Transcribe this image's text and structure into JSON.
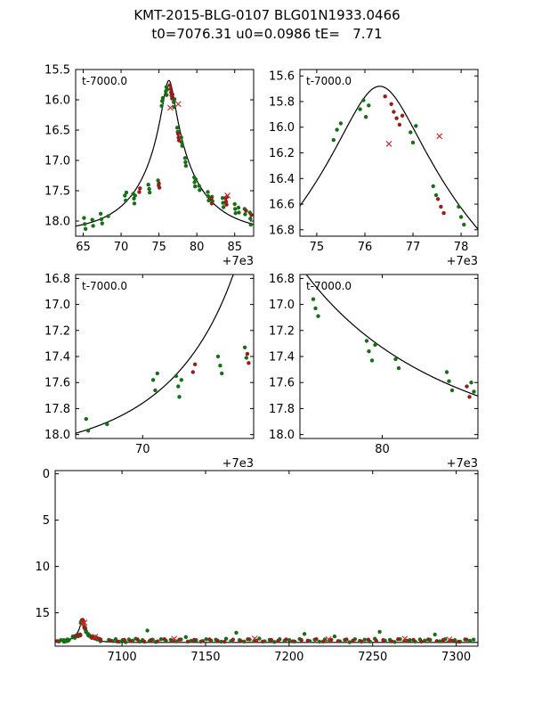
{
  "title": "KMT-2015-BLG-0107 BLG01N1933.0466",
  "subtitle": "t0=7076.31 u0=0.0986 tE=   7.71",
  "chart_data": {
    "type": "scatter",
    "description": "Gravitational microlensing light curve (magnitude vs HJD-2450000) with Paczynski model curve; five panels: wide peak view, peak zoom, rising wing, falling wing, full season",
    "model": {
      "t0": 7076.31,
      "u0": 0.0986,
      "tE": 7.71,
      "baseline_mag": 18.2
    },
    "colors": {
      "curve": "#000000",
      "green_dots": "#157015",
      "red_dots": "#9b1b1b",
      "outlier_x": "#d12626"
    },
    "panels": [
      {
        "id": "peak-wide",
        "x_offset": 7000,
        "xlim": [
          64,
          87.5
        ],
        "ylim": [
          15.5,
          18.25
        ],
        "xticks": [
          65,
          70,
          75,
          80,
          85
        ],
        "xtick_labels": [
          "65",
          "70",
          "75",
          "80",
          "85"
        ],
        "yticks": [
          15.5,
          16.0,
          16.5,
          17.0,
          17.5,
          18.0
        ],
        "ytick_labels": [
          "15.5",
          "16.0",
          "16.5",
          "17.0",
          "17.5",
          "18.0"
        ],
        "annotation": "t-7000.0",
        "offset_label": "+7e3"
      },
      {
        "id": "peak-zoom",
        "x_offset": 7000,
        "xlim": [
          74.65,
          78.35
        ],
        "ylim": [
          15.55,
          16.85
        ],
        "xticks": [
          75,
          76,
          77,
          78
        ],
        "xtick_labels": [
          "75",
          "76",
          "77",
          "78"
        ],
        "yticks": [
          15.6,
          15.8,
          16.0,
          16.2,
          16.4,
          16.6,
          16.8
        ],
        "ytick_labels": [
          "15.6",
          "15.8",
          "16.0",
          "16.2",
          "16.4",
          "16.6",
          "16.8"
        ],
        "annotation": "t-7000.0",
        "offset_label": "+7e3"
      },
      {
        "id": "rise",
        "x_offset": 7000,
        "xlim": [
          66.8,
          75.3
        ],
        "ylim": [
          16.77,
          18.03
        ],
        "xticks": [
          70
        ],
        "xtick_labels": [
          "70"
        ],
        "yticks": [
          16.8,
          17.0,
          17.2,
          17.4,
          17.6,
          17.8,
          18.0
        ],
        "ytick_labels": [
          "16.8",
          "17.0",
          "17.2",
          "17.4",
          "17.6",
          "17.8",
          "18.0"
        ],
        "annotation": "t-7000.0",
        "offset_label": "+7e3"
      },
      {
        "id": "fall",
        "x_offset": 7000,
        "xlim": [
          78.15,
          82.15
        ],
        "ylim": [
          16.77,
          18.03
        ],
        "xticks": [
          80
        ],
        "xtick_labels": [
          "80"
        ],
        "yticks": [
          16.8,
          17.0,
          17.2,
          17.4,
          17.6,
          17.8,
          18.0
        ],
        "ytick_labels": [
          "16.8",
          "17.0",
          "17.2",
          "17.4",
          "17.6",
          "17.8",
          "18.0"
        ],
        "annotation": "t-7000.0",
        "offset_label": "+7e3"
      },
      {
        "id": "full",
        "x_offset": 0,
        "xlim": [
          7060,
          7313
        ],
        "ylim": [
          -0.35,
          18.6
        ],
        "xticks": [
          7100,
          7150,
          7200,
          7250,
          7300
        ],
        "xtick_labels": [
          "7100",
          "7150",
          "7200",
          "7250",
          "7300"
        ],
        "yticks": [
          0,
          5,
          10,
          15
        ],
        "ytick_labels": [
          "0",
          "5",
          "10",
          "15"
        ],
        "annotation": "",
        "offset_label": ""
      }
    ],
    "series": [
      {
        "name": "obs-green",
        "marker": "dot",
        "color_key": "green_dots",
        "points": [
          [
            7065.1,
            17.95
          ],
          [
            7065.2,
            18.05
          ],
          [
            7065.3,
            18.13
          ],
          [
            7066.2,
            17.98
          ],
          [
            7066.3,
            18.08
          ],
          [
            7067.3,
            17.88
          ],
          [
            7067.4,
            17.97
          ],
          [
            7067.5,
            18.04
          ],
          [
            7068.3,
            17.92
          ],
          [
            7070.5,
            17.58
          ],
          [
            7070.6,
            17.66
          ],
          [
            7070.7,
            17.53
          ],
          [
            7071.6,
            17.55
          ],
          [
            7071.7,
            17.63
          ],
          [
            7071.75,
            17.71
          ],
          [
            7071.85,
            17.58
          ],
          [
            7073.6,
            17.4
          ],
          [
            7073.7,
            17.47
          ],
          [
            7073.78,
            17.53
          ],
          [
            7074.88,
            17.33
          ],
          [
            7074.95,
            17.41
          ],
          [
            7075.35,
            16.1
          ],
          [
            7075.42,
            16.02
          ],
          [
            7075.5,
            15.97
          ],
          [
            7075.9,
            15.86
          ],
          [
            7075.97,
            15.79
          ],
          [
            7076.02,
            15.92
          ],
          [
            7076.08,
            15.83
          ],
          [
            7076.95,
            16.04
          ],
          [
            7077.0,
            16.12
          ],
          [
            7077.06,
            15.99
          ],
          [
            7077.42,
            16.46
          ],
          [
            7077.48,
            16.53
          ],
          [
            7077.95,
            16.62
          ],
          [
            7078.0,
            16.7
          ],
          [
            7078.06,
            16.76
          ],
          [
            7078.45,
            16.96
          ],
          [
            7078.5,
            17.03
          ],
          [
            7078.56,
            17.09
          ],
          [
            7079.65,
            17.28
          ],
          [
            7079.7,
            17.36
          ],
          [
            7079.77,
            17.43
          ],
          [
            7079.84,
            17.31
          ],
          [
            7080.3,
            17.42
          ],
          [
            7080.37,
            17.49
          ],
          [
            7081.45,
            17.52
          ],
          [
            7081.5,
            17.59
          ],
          [
            7081.57,
            17.66
          ],
          [
            7082.0,
            17.6
          ],
          [
            7082.06,
            17.67
          ],
          [
            7083.4,
            17.62
          ],
          [
            7083.46,
            17.7
          ],
          [
            7083.52,
            17.77
          ],
          [
            7085.0,
            17.72
          ],
          [
            7085.06,
            17.8
          ],
          [
            7085.12,
            17.87
          ],
          [
            7085.5,
            17.78
          ],
          [
            7085.56,
            17.86
          ],
          [
            7086.3,
            17.8
          ],
          [
            7086.37,
            17.89
          ],
          [
            7087.0,
            17.86
          ],
          [
            7087.06,
            17.96
          ],
          [
            7087.12,
            18.06
          ],
          [
            7062.3,
            18.1
          ],
          [
            7063.4,
            17.95
          ],
          [
            7092.1,
            17.92
          ],
          [
            7094.3,
            18.05
          ],
          [
            7096.2,
            17.85
          ],
          [
            7098.4,
            18.12
          ],
          [
            7100.3,
            17.95
          ],
          [
            7102.2,
            18.18
          ],
          [
            7104.1,
            17.88
          ],
          [
            7106.3,
            18.02
          ],
          [
            7108.2,
            17.8
          ],
          [
            7110.4,
            18.1
          ],
          [
            7112.3,
            17.95
          ],
          [
            7115.2,
            16.92
          ],
          [
            7116.4,
            18.05
          ],
          [
            7118.3,
            17.9
          ],
          [
            7120.2,
            18.15
          ],
          [
            7123.4,
            17.85
          ],
          [
            7126.3,
            18.0
          ],
          [
            7129.2,
            17.92
          ],
          [
            7132.4,
            18.08
          ],
          [
            7135.3,
            17.88
          ],
          [
            7138.2,
            17.62
          ],
          [
            7141.4,
            18.02
          ],
          [
            7144.3,
            17.95
          ],
          [
            7147.2,
            18.1
          ],
          [
            7150.4,
            17.85
          ],
          [
            7153.3,
            18.0
          ],
          [
            7156.2,
            17.9
          ],
          [
            7159.4,
            18.12
          ],
          [
            7162.3,
            17.8
          ],
          [
            7165.2,
            18.05
          ],
          [
            7168.4,
            17.15
          ],
          [
            7170.3,
            17.95
          ],
          [
            7173.2,
            18.1
          ],
          [
            7176.4,
            17.88
          ],
          [
            7179.3,
            18.0
          ],
          [
            7182.2,
            17.78
          ],
          [
            7185.4,
            18.08
          ],
          [
            7188.3,
            17.92
          ],
          [
            7191.2,
            18.15
          ],
          [
            7194.4,
            17.85
          ],
          [
            7197.3,
            18.0
          ],
          [
            7200.2,
            17.95
          ],
          [
            7203.4,
            18.1
          ],
          [
            7206.3,
            17.82
          ],
          [
            7209.2,
            17.28
          ],
          [
            7212.4,
            18.05
          ],
          [
            7215.3,
            17.9
          ],
          [
            7218.2,
            18.12
          ],
          [
            7221.4,
            17.88
          ],
          [
            7224.3,
            18.0
          ],
          [
            7227.2,
            17.55
          ],
          [
            7230.4,
            18.08
          ],
          [
            7233.3,
            17.92
          ],
          [
            7236.2,
            18.18
          ],
          [
            7239.4,
            17.85
          ],
          [
            7242.3,
            18.02
          ],
          [
            7245.2,
            17.9
          ],
          [
            7248.4,
            18.1
          ],
          [
            7251.3,
            17.8
          ],
          [
            7254.2,
            17.05
          ],
          [
            7257.4,
            18.0
          ],
          [
            7260.3,
            17.92
          ],
          [
            7263.2,
            18.15
          ],
          [
            7266.4,
            17.85
          ],
          [
            7269.3,
            18.05
          ],
          [
            7272.2,
            17.95
          ],
          [
            7275.4,
            18.1
          ],
          [
            7278.3,
            17.88
          ],
          [
            7281.2,
            18.0
          ],
          [
            7284.4,
            17.92
          ],
          [
            7287.3,
            17.35
          ],
          [
            7290.2,
            18.08
          ],
          [
            7293.4,
            17.85
          ],
          [
            7296.3,
            18.0
          ],
          [
            7299.2,
            17.95
          ],
          [
            7302.4,
            18.12
          ],
          [
            7305.3,
            17.88
          ],
          [
            7308.2,
            18.02
          ],
          [
            7310.4,
            17.9
          ]
        ]
      },
      {
        "name": "obs-red",
        "marker": "dot",
        "color_key": "red_dots",
        "points": [
          [
            7072.4,
            17.52
          ],
          [
            7072.5,
            17.46
          ],
          [
            7075.0,
            17.38
          ],
          [
            7075.06,
            17.45
          ],
          [
            7076.42,
            15.76
          ],
          [
            7076.55,
            15.82
          ],
          [
            7076.6,
            15.88
          ],
          [
            7076.66,
            15.93
          ],
          [
            7076.72,
            15.98
          ],
          [
            7076.78,
            15.91
          ],
          [
            7077.52,
            16.56
          ],
          [
            7077.58,
            16.62
          ],
          [
            7077.64,
            16.67
          ],
          [
            7081.9,
            17.63
          ],
          [
            7081.96,
            17.71
          ],
          [
            7083.8,
            17.62
          ],
          [
            7083.86,
            17.68
          ],
          [
            7083.92,
            17.73
          ],
          [
            7084.0,
            17.6
          ],
          [
            7086.5,
            17.83
          ],
          [
            7087.2,
            17.9
          ],
          [
            7061.2,
            18.05
          ],
          [
            7093.2,
            18.0
          ],
          [
            7097.3,
            18.1
          ],
          [
            7101.4,
            17.92
          ],
          [
            7105.2,
            18.05
          ],
          [
            7109.3,
            17.88
          ],
          [
            7113.4,
            18.12
          ],
          [
            7117.2,
            17.95
          ],
          [
            7121.3,
            18.08
          ],
          [
            7125.4,
            17.85
          ],
          [
            7130.2,
            18.0
          ],
          [
            7134.3,
            17.9
          ],
          [
            7139.4,
            18.1
          ],
          [
            7143.2,
            17.92
          ],
          [
            7148.3,
            18.05
          ],
          [
            7152.4,
            17.88
          ],
          [
            7157.2,
            18.0
          ],
          [
            7161.3,
            18.12
          ],
          [
            7166.4,
            17.9
          ],
          [
            7171.2,
            18.05
          ],
          [
            7175.3,
            17.85
          ],
          [
            7180.4,
            18.0
          ],
          [
            7184.2,
            18.1
          ],
          [
            7189.3,
            17.92
          ],
          [
            7193.4,
            18.02
          ],
          [
            7198.2,
            17.88
          ],
          [
            7202.3,
            18.08
          ],
          [
            7207.4,
            17.95
          ],
          [
            7211.2,
            18.0
          ],
          [
            7216.3,
            17.85
          ],
          [
            7220.4,
            18.1
          ],
          [
            7225.2,
            17.92
          ],
          [
            7229.3,
            18.05
          ],
          [
            7234.4,
            17.88
          ],
          [
            7238.2,
            18.0
          ],
          [
            7243.3,
            18.1
          ],
          [
            7247.4,
            17.9
          ],
          [
            7252.2,
            18.02
          ],
          [
            7256.3,
            17.95
          ],
          [
            7261.4,
            18.08
          ],
          [
            7265.2,
            17.85
          ],
          [
            7270.3,
            18.0
          ],
          [
            7274.4,
            17.92
          ],
          [
            7279.2,
            18.1
          ],
          [
            7283.3,
            17.88
          ],
          [
            7288.4,
            18.05
          ],
          [
            7292.2,
            17.95
          ],
          [
            7297.3,
            18.0
          ],
          [
            7301.4,
            18.12
          ],
          [
            7306.2,
            17.9
          ]
        ]
      },
      {
        "name": "obs-outlier",
        "marker": "x",
        "color_key": "outlier_x",
        "points": [
          [
            7076.5,
            16.13
          ],
          [
            7077.55,
            16.07
          ],
          [
            7084.05,
            17.58
          ],
          [
            7131.2,
            17.8
          ],
          [
            7179.4,
            17.78
          ],
          [
            7223.6,
            17.85
          ],
          [
            7269.2,
            17.8
          ],
          [
            7295.8,
            17.88
          ]
        ]
      }
    ]
  }
}
